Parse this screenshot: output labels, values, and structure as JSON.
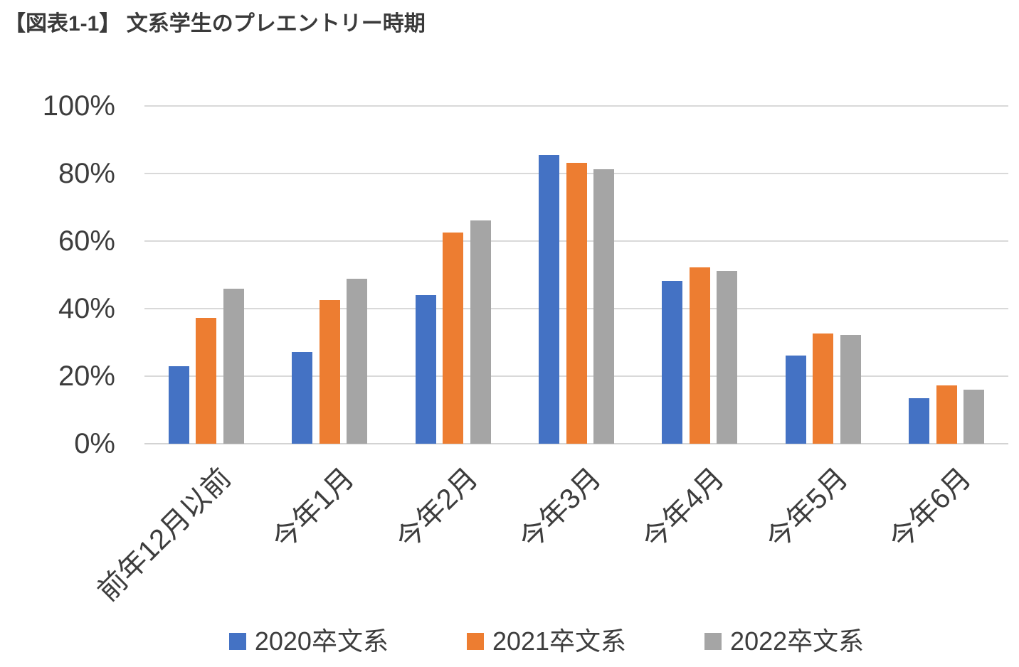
{
  "title": "【図表1-1】 文系学生のプレエントリー時期",
  "chart_data": {
    "type": "bar",
    "title": "【図表1-1】 文系学生のプレエントリー時期",
    "categories": [
      "前年12月以前",
      "今年1月",
      "今年2月",
      "今年3月",
      "今年4月",
      "今年5月",
      "今年6月"
    ],
    "series": [
      {
        "name": "2020卒文系",
        "color": "#4472C4",
        "values": [
          23.0,
          27.2,
          44.0,
          85.4,
          48.2,
          26.2,
          13.4
        ]
      },
      {
        "name": "2021卒文系",
        "color": "#ED7D31",
        "values": [
          37.2,
          42.6,
          62.5,
          83.1,
          52.2,
          32.6,
          17.2
        ]
      },
      {
        "name": "2022卒文系",
        "color": "#A5A5A5",
        "values": [
          45.9,
          48.8,
          66.1,
          81.3,
          51.2,
          32.3,
          16.1
        ]
      }
    ],
    "xlabel": "",
    "ylabel": "",
    "ylim": [
      0,
      100
    ],
    "y_ticks": [
      0,
      20,
      40,
      60,
      80,
      100
    ],
    "y_tick_labels": [
      "0%",
      "20%",
      "40%",
      "60%",
      "80%",
      "100%"
    ],
    "grid": true,
    "legend_position": "bottom",
    "x_tick_rotation_deg": 45
  },
  "colors": {
    "background": "#FFFFFF",
    "gridline": "#D9D9D9",
    "axis_text": "#3D3D3D",
    "title_text": "#3A3A3A",
    "series_blue": "#4472C4",
    "series_orange": "#ED7D31",
    "series_gray": "#A5A5A5"
  }
}
